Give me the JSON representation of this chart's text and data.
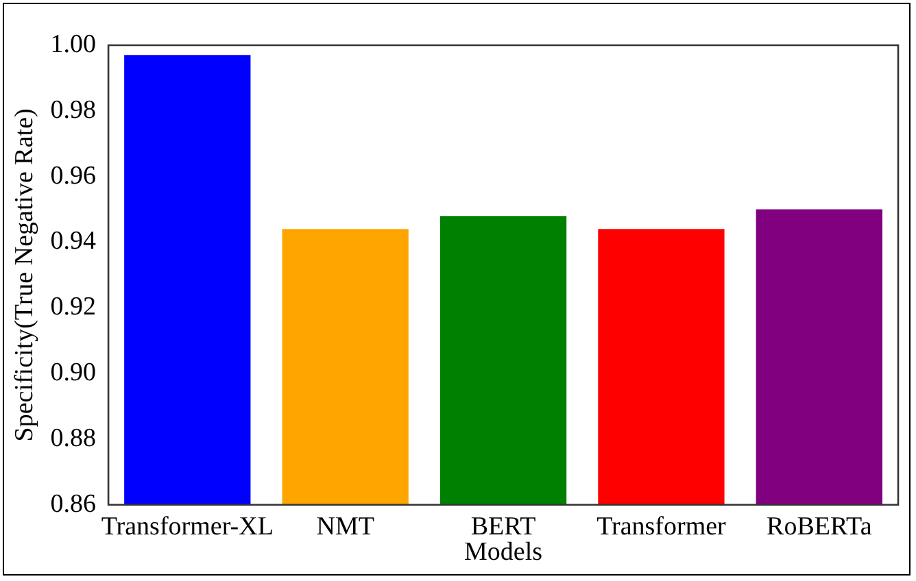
{
  "chart_data": {
    "type": "bar",
    "categories": [
      "Transformer-XL",
      "NMT",
      "BERT",
      "Transformer",
      "RoBERTa"
    ],
    "values": [
      0.997,
      0.944,
      0.948,
      0.944,
      0.95
    ],
    "colors": [
      "#0000ff",
      "#ffa500",
      "#008000",
      "#ff0000",
      "#800080"
    ],
    "xlabel": "Models",
    "ylabel": "Specificity(True Negative Rate)",
    "ylim": [
      0.86,
      1.0
    ],
    "yticks": [
      0.86,
      0.88,
      {
        "value": 0.9,
        "label": "0.90"
      },
      0.92,
      0.94,
      0.96,
      0.98,
      {
        "value": 1,
        "label": "1.00"
      }
    ],
    "grid": false,
    "legend": false
  }
}
